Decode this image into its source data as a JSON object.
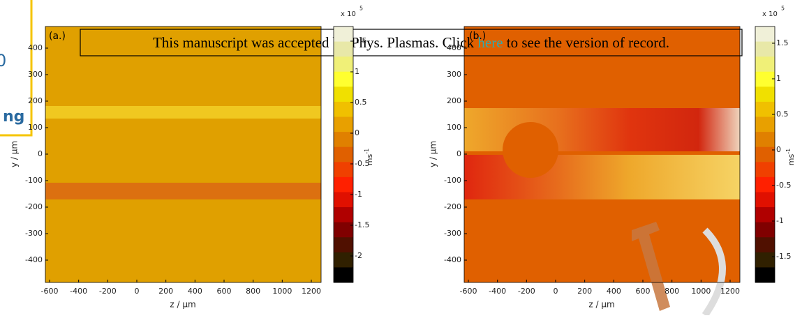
{
  "banner": {
    "text_before": "This manuscript was accepted by Phys. Plasmas. Click",
    "link": "here",
    "text_after": "to see the version of record."
  },
  "sidebar_fragments": [
    "0",
    "ng"
  ],
  "panels": [
    {
      "label": "(a.)",
      "ylabel": "y / µm",
      "xlabel": "z / µm",
      "yticks": [
        400,
        300,
        200,
        100,
        0,
        -100,
        -200,
        -300,
        -400
      ],
      "xticks": [
        -600,
        -400,
        -200,
        0,
        200,
        400,
        600,
        800,
        1000,
        1200
      ],
      "colorbar": {
        "exponent_base": "x 10",
        "exponent": "5",
        "unit_base": "ms",
        "unit_exp": "-1",
        "ticks": [
          1.5,
          1,
          0.5,
          0,
          -0.5,
          -1,
          -1.5,
          -2
        ]
      }
    },
    {
      "label": "(b.)",
      "ylabel": "y / µm",
      "xlabel": "z / µm",
      "yticks": [
        400,
        300,
        200,
        100,
        0,
        -100,
        -200,
        -300,
        -400
      ],
      "xticks": [
        -600,
        -400,
        -200,
        0,
        200,
        400,
        600,
        800,
        1000,
        1200
      ],
      "colorbar": {
        "exponent_base": "x 10",
        "exponent": "5",
        "unit_base": "ms",
        "unit_exp": "-1",
        "ticks": [
          1.5,
          1,
          0.5,
          0,
          -0.5,
          -1,
          -1.5
        ]
      }
    }
  ]
}
